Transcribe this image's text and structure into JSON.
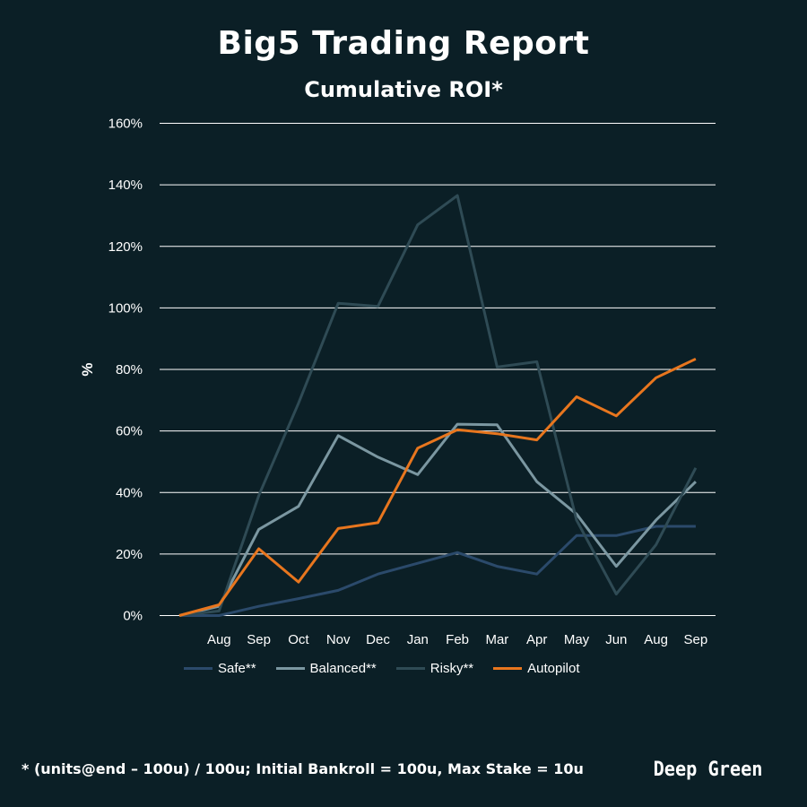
{
  "title": "Big5 Trading Report",
  "subtitle": "Cumulative ROI*",
  "footnote": "* (units@end – 100u) / 100u; Initial Bankroll = 100u, Max Stake = 10u",
  "brand": "Deep Green",
  "chart_data": {
    "type": "line",
    "title": "Big5 Trading Report",
    "subtitle": "Cumulative ROI*",
    "ylabel": "%",
    "xlabel": "",
    "categories": [
      "",
      "Aug",
      "Sep",
      "Oct",
      "Nov",
      "Dec",
      "Jan",
      "Feb",
      "Mar",
      "Apr",
      "May",
      "Jun",
      "Aug",
      "Sep"
    ],
    "ylim": [
      0,
      160
    ],
    "yticks": [
      0,
      20,
      40,
      60,
      80,
      100,
      120,
      140,
      160
    ],
    "ytick_labels": [
      "0%",
      "20%",
      "40%",
      "60%",
      "80%",
      "100%",
      "120%",
      "140%",
      "160%"
    ],
    "grid": true,
    "legend": "bottom",
    "series": [
      {
        "name": "Safe**",
        "color": "#2b4a6b",
        "values": [
          0,
          0,
          3,
          5.5,
          8.2,
          13.5,
          17,
          20.5,
          16,
          13.5,
          26,
          26,
          29,
          29
        ]
      },
      {
        "name": "Balanced**",
        "color": "#7b97a1",
        "values": [
          0,
          3,
          28,
          35.5,
          58.5,
          51.5,
          45.8,
          62.2,
          62,
          43.5,
          33,
          16,
          31,
          43.5
        ]
      },
      {
        "name": "Risky**",
        "color": "#2f4b55",
        "values": [
          0,
          1.5,
          39,
          69,
          101.5,
          100.5,
          127,
          136.5,
          80.8,
          82.5,
          31,
          7,
          23,
          48
        ]
      },
      {
        "name": "Autopilot",
        "color": "#e8761e",
        "values": [
          0,
          3.5,
          21.7,
          10.9,
          28.3,
          30.2,
          54.4,
          60.4,
          59.1,
          57.1,
          71.1,
          64.9,
          77.3,
          83.4
        ]
      }
    ]
  }
}
